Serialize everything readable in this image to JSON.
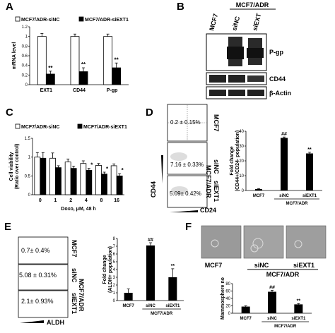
{
  "panels": {
    "A": "A",
    "B": "B",
    "C": "C",
    "D": "D",
    "E": "E",
    "F": "F"
  },
  "chart_data": [
    {
      "id": "A",
      "type": "bar",
      "ylabel": "mRNA level",
      "ylim": [
        0,
        1.2
      ],
      "yticks": [
        "0",
        "0.2",
        "0.4",
        "0.6",
        "0.8",
        "1",
        "1.2"
      ],
      "categories": [
        "EXT1",
        "CD44",
        "P-gp"
      ],
      "series": [
        {
          "name": "MCF7/ADR-siNC",
          "color": "#ffffff",
          "values": [
            1.0,
            1.0,
            1.0
          ],
          "errors": [
            0.06,
            0.05,
            0.05
          ]
        },
        {
          "name": "MCF7/ADR-siEXT1",
          "color": "#000000",
          "values": [
            0.22,
            0.27,
            0.35
          ],
          "errors": [
            0.06,
            0.08,
            0.1
          ]
        }
      ],
      "annotations": [
        "**",
        "**",
        "**"
      ]
    },
    {
      "id": "C",
      "type": "bar",
      "ylabel": "Cell viability\n(Ratio over control)",
      "xlabel": "Doxo, μM, 48 h",
      "ylim": [
        0,
        1.5
      ],
      "yticks": [
        "0",
        "0.5",
        "1",
        "1.5"
      ],
      "categories": [
        "0",
        "1",
        "2",
        "4",
        "8",
        "16"
      ],
      "series": [
        {
          "name": "MCF7/ADR-siNC",
          "color": "#ffffff",
          "values": [
            1.0,
            0.97,
            0.87,
            0.83,
            0.78,
            0.77
          ],
          "errors": [
            0.12,
            0.14,
            0.08,
            0.07,
            0.05,
            0.05
          ]
        },
        {
          "name": "MCF7/ADR-siEXT1",
          "color": "#000000",
          "values": [
            0.97,
            0.72,
            0.7,
            0.65,
            0.55,
            0.5
          ],
          "errors": [
            0.15,
            0.05,
            0.06,
            0.05,
            0.05,
            0.06
          ]
        }
      ],
      "annotations": [
        "",
        "",
        "",
        "*",
        "*",
        "*"
      ]
    },
    {
      "id": "D",
      "type": "bar",
      "ylabel": "Fold change\n(CD44+/CD24- population)",
      "ylim": [
        0,
        40
      ],
      "yticks": [
        "0",
        "10",
        "20",
        "30",
        "40"
      ],
      "categories": [
        "MCF7",
        "siNC",
        "siEXT1"
      ],
      "group_label": "MCF7/ADR",
      "values": [
        1.0,
        35.5,
        25.0
      ],
      "errors": [
        0.3,
        0.6,
        0.8
      ],
      "annotations": [
        "",
        "##",
        "**"
      ]
    },
    {
      "id": "E",
      "type": "bar",
      "ylabel": "Fold change\n(ALDH+ population)",
      "ylim": [
        0,
        8
      ],
      "yticks": [
        "0",
        "1",
        "2",
        "3",
        "4",
        "5",
        "6",
        "7",
        "8"
      ],
      "categories": [
        "MCF7",
        "siNC",
        "siEXT1"
      ],
      "group_label": "MCF7/ADR",
      "values": [
        1.0,
        7.1,
        3.0
      ],
      "errors": [
        0.5,
        0.35,
        1.1
      ],
      "annotations": [
        "",
        "##",
        "**"
      ]
    },
    {
      "id": "F",
      "type": "bar",
      "ylabel": "Mammosphere no",
      "ylim": [
        0,
        80
      ],
      "yticks": [
        "0",
        "20",
        "40",
        "60",
        "80"
      ],
      "categories": [
        "MCF7",
        "siNC",
        "siEXT1"
      ],
      "group_label": "MCF7/ADR",
      "values": [
        18,
        58,
        24
      ],
      "errors": [
        2,
        4,
        2
      ],
      "annotations": [
        "",
        "##",
        "**"
      ]
    }
  ],
  "blot": {
    "title": "MCF7/ADR",
    "lanes": [
      "MCF7",
      "siNC",
      "siEXT"
    ],
    "bands": [
      "P-gp",
      "CD44",
      "β-Actin"
    ]
  },
  "flow_d": {
    "quad_values": [
      "0.2 ± 0.15%",
      "7.16 ± 0.33%",
      "5.09± 0.42%"
    ],
    "row_labels": [
      "MCF7",
      "siNC",
      "siEXT1"
    ],
    "group": "MCF7/ADR",
    "yaxis": "CD44",
    "xaxis": "CD24"
  },
  "flow_e": {
    "values": [
      "0.7± 0.4%",
      "5.08 ± 0.31%",
      "2.1± 0.93%"
    ],
    "row_labels": [
      "MCF7",
      "siNC",
      "siEXT1"
    ],
    "group": "MCF7/ADR",
    "xaxis": "ALDH"
  },
  "sphere": {
    "labels": [
      "MCF7",
      "siNC",
      "siEXT1"
    ],
    "group": "MCF7/ADR"
  }
}
